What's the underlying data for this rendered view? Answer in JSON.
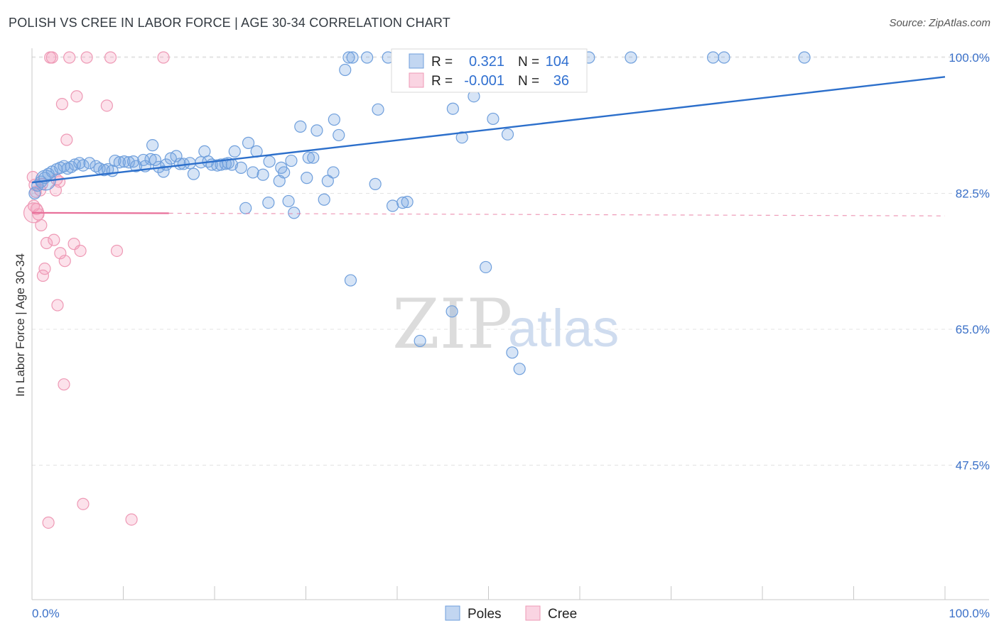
{
  "header": {
    "title": "POLISH VS CREE IN LABOR FORCE | AGE 30-34 CORRELATION CHART",
    "source": "Source: ZipAtlas.com"
  },
  "watermark": {
    "part1": "ZIP",
    "part2": "atlas"
  },
  "legend": {
    "rows": [
      {
        "r_label": "R =",
        "r_value": "0.321",
        "n_label": "N =",
        "n_value": "104"
      },
      {
        "r_label": "R =",
        "r_value": "-0.001",
        "n_label": "N =",
        "n_value": "36"
      }
    ]
  },
  "bottom_legend": {
    "items": [
      "Poles",
      "Cree"
    ]
  },
  "colors": {
    "poles_fill": "rgba(120,165,225,0.30)",
    "poles_stroke": "#6f9fdc",
    "poles_line": "#2c6fcb",
    "cree_fill": "rgba(245,160,190,0.30)",
    "cree_stroke": "#ee99b5",
    "cree_line": "#e8709a",
    "axis_label": "#3a70c8"
  },
  "chart_data": {
    "type": "scatter",
    "title": "POLISH VS CREE IN LABOR FORCE | AGE 30-34 CORRELATION CHART",
    "xlabel": "",
    "ylabel": "In Labor Force | Age 30-34",
    "xlim": [
      0,
      100
    ],
    "ylim": [
      32,
      101
    ],
    "x_tick_labels": [
      "0.0%",
      "100.0%"
    ],
    "y_ticks": [
      47.5,
      65.0,
      82.5,
      100.0
    ],
    "y_tick_labels": [
      "47.5%",
      "65.0%",
      "82.5%",
      "100.0%"
    ],
    "grid": true,
    "legend_position": "top-center",
    "series": [
      {
        "name": "Poles",
        "r": 0.321,
        "n": 104,
        "trend": {
          "x": [
            0,
            100
          ],
          "y": [
            83.9,
            97.5
          ]
        },
        "points": [
          [
            0.3,
            82.5
          ],
          [
            0.6,
            83.5
          ],
          [
            1.0,
            84.0
          ],
          [
            1.4,
            84.5
          ],
          [
            1.8,
            85.0
          ],
          [
            2.2,
            85.3
          ],
          [
            2.7,
            85.6
          ],
          [
            3.1,
            85.8
          ],
          [
            3.5,
            86.0
          ],
          [
            3.9,
            85.7
          ],
          [
            4.3,
            85.9
          ],
          [
            4.7,
            86.2
          ],
          [
            5.2,
            86.4
          ],
          [
            5.6,
            86.1
          ],
          [
            6.3,
            86.4
          ],
          [
            7.0,
            86.0
          ],
          [
            7.4,
            85.7
          ],
          [
            7.9,
            85.5
          ],
          [
            8.3,
            85.6
          ],
          [
            8.8,
            85.4
          ],
          [
            9.1,
            86.7
          ],
          [
            9.6,
            86.5
          ],
          [
            10.1,
            86.6
          ],
          [
            10.6,
            86.5
          ],
          [
            11.1,
            86.6
          ],
          [
            11.4,
            86.0
          ],
          [
            12.2,
            86.8
          ],
          [
            12.4,
            86.0
          ],
          [
            13.0,
            86.9
          ],
          [
            13.2,
            88.7
          ],
          [
            13.5,
            86.8
          ],
          [
            13.9,
            85.9
          ],
          [
            14.4,
            85.3
          ],
          [
            14.7,
            86.2
          ],
          [
            15.2,
            87.0
          ],
          [
            15.8,
            87.3
          ],
          [
            16.2,
            86.3
          ],
          [
            16.6,
            86.3
          ],
          [
            17.3,
            86.4
          ],
          [
            17.7,
            85.0
          ],
          [
            18.5,
            86.5
          ],
          [
            18.9,
            87.9
          ],
          [
            19.3,
            86.6
          ],
          [
            19.7,
            86.2
          ],
          [
            20.3,
            86.1
          ],
          [
            20.7,
            86.2
          ],
          [
            21.2,
            86.3
          ],
          [
            21.5,
            86.4
          ],
          [
            21.9,
            86.2
          ],
          [
            22.2,
            87.9
          ],
          [
            22.9,
            85.8
          ],
          [
            23.4,
            80.6
          ],
          [
            23.7,
            89.0
          ],
          [
            24.2,
            85.2
          ],
          [
            24.6,
            87.9
          ],
          [
            25.3,
            84.9
          ],
          [
            25.9,
            81.3
          ],
          [
            26.0,
            86.6
          ],
          [
            27.3,
            85.8
          ],
          [
            27.1,
            84.1
          ],
          [
            27.6,
            85.2
          ],
          [
            28.1,
            81.5
          ],
          [
            28.4,
            86.7
          ],
          [
            28.7,
            80.0
          ],
          [
            29.4,
            91.1
          ],
          [
            30.1,
            84.5
          ],
          [
            30.3,
            87.1
          ],
          [
            30.8,
            87.1
          ],
          [
            31.2,
            90.6
          ],
          [
            32.0,
            81.7
          ],
          [
            32.4,
            84.1
          ],
          [
            33.0,
            85.2
          ],
          [
            33.1,
            92.0
          ],
          [
            33.6,
            90.0
          ],
          [
            34.3,
            98.4
          ],
          [
            34.7,
            100.0
          ],
          [
            34.9,
            71.3
          ],
          [
            35.1,
            100.0
          ],
          [
            36.7,
            100.0
          ],
          [
            37.6,
            83.7
          ],
          [
            37.9,
            93.3
          ],
          [
            39.0,
            100.0
          ],
          [
            39.5,
            80.9
          ],
          [
            40.6,
            81.3
          ],
          [
            41.1,
            81.4
          ],
          [
            45.3,
            100.0
          ],
          [
            46.0,
            67.3
          ],
          [
            46.1,
            93.4
          ],
          [
            47.1,
            89.7
          ],
          [
            48.4,
            95.0
          ],
          [
            49.7,
            73.0
          ],
          [
            50.5,
            92.1
          ],
          [
            52.1,
            90.1
          ],
          [
            52.6,
            62.0
          ],
          [
            53.4,
            59.9
          ],
          [
            54.1,
            100.0
          ],
          [
            56.3,
            100.0
          ],
          [
            61.0,
            100.0
          ],
          [
            65.6,
            100.0
          ],
          [
            74.6,
            100.0
          ],
          [
            75.8,
            100.0
          ],
          [
            84.6,
            100.0
          ],
          [
            42.5,
            63.5
          ],
          [
            44.0,
            100.0
          ]
        ]
      },
      {
        "name": "Cree",
        "r": -0.001,
        "n": 36,
        "trend": {
          "x": [
            0,
            100
          ],
          "y": [
            80.0,
            79.6
          ]
        },
        "points": [
          [
            0.1,
            84.6
          ],
          [
            0.3,
            83.6
          ],
          [
            0.5,
            80.5
          ],
          [
            0.7,
            79.8
          ],
          [
            0.9,
            82.9
          ],
          [
            1.0,
            78.4
          ],
          [
            1.1,
            83.7
          ],
          [
            1.2,
            71.9
          ],
          [
            1.4,
            72.8
          ],
          [
            1.6,
            76.1
          ],
          [
            1.8,
            40.1
          ],
          [
            2.0,
            100.0
          ],
          [
            2.2,
            100.0
          ],
          [
            2.4,
            76.5
          ],
          [
            2.6,
            82.9
          ],
          [
            2.8,
            68.1
          ],
          [
            3.0,
            84.0
          ],
          [
            3.1,
            74.8
          ],
          [
            3.3,
            94.0
          ],
          [
            3.5,
            57.9
          ],
          [
            3.6,
            73.8
          ],
          [
            3.8,
            89.4
          ],
          [
            4.1,
            100.0
          ],
          [
            4.6,
            76.0
          ],
          [
            4.9,
            95.0
          ],
          [
            5.3,
            75.1
          ],
          [
            5.6,
            42.5
          ],
          [
            6.0,
            100.0
          ],
          [
            8.2,
            93.8
          ],
          [
            8.6,
            100.0
          ],
          [
            9.3,
            75.1
          ],
          [
            10.9,
            40.5
          ],
          [
            14.4,
            100.0
          ],
          [
            0.2,
            80.9
          ],
          [
            0.4,
            82.7
          ],
          [
            2.7,
            84.3
          ]
        ]
      }
    ]
  }
}
